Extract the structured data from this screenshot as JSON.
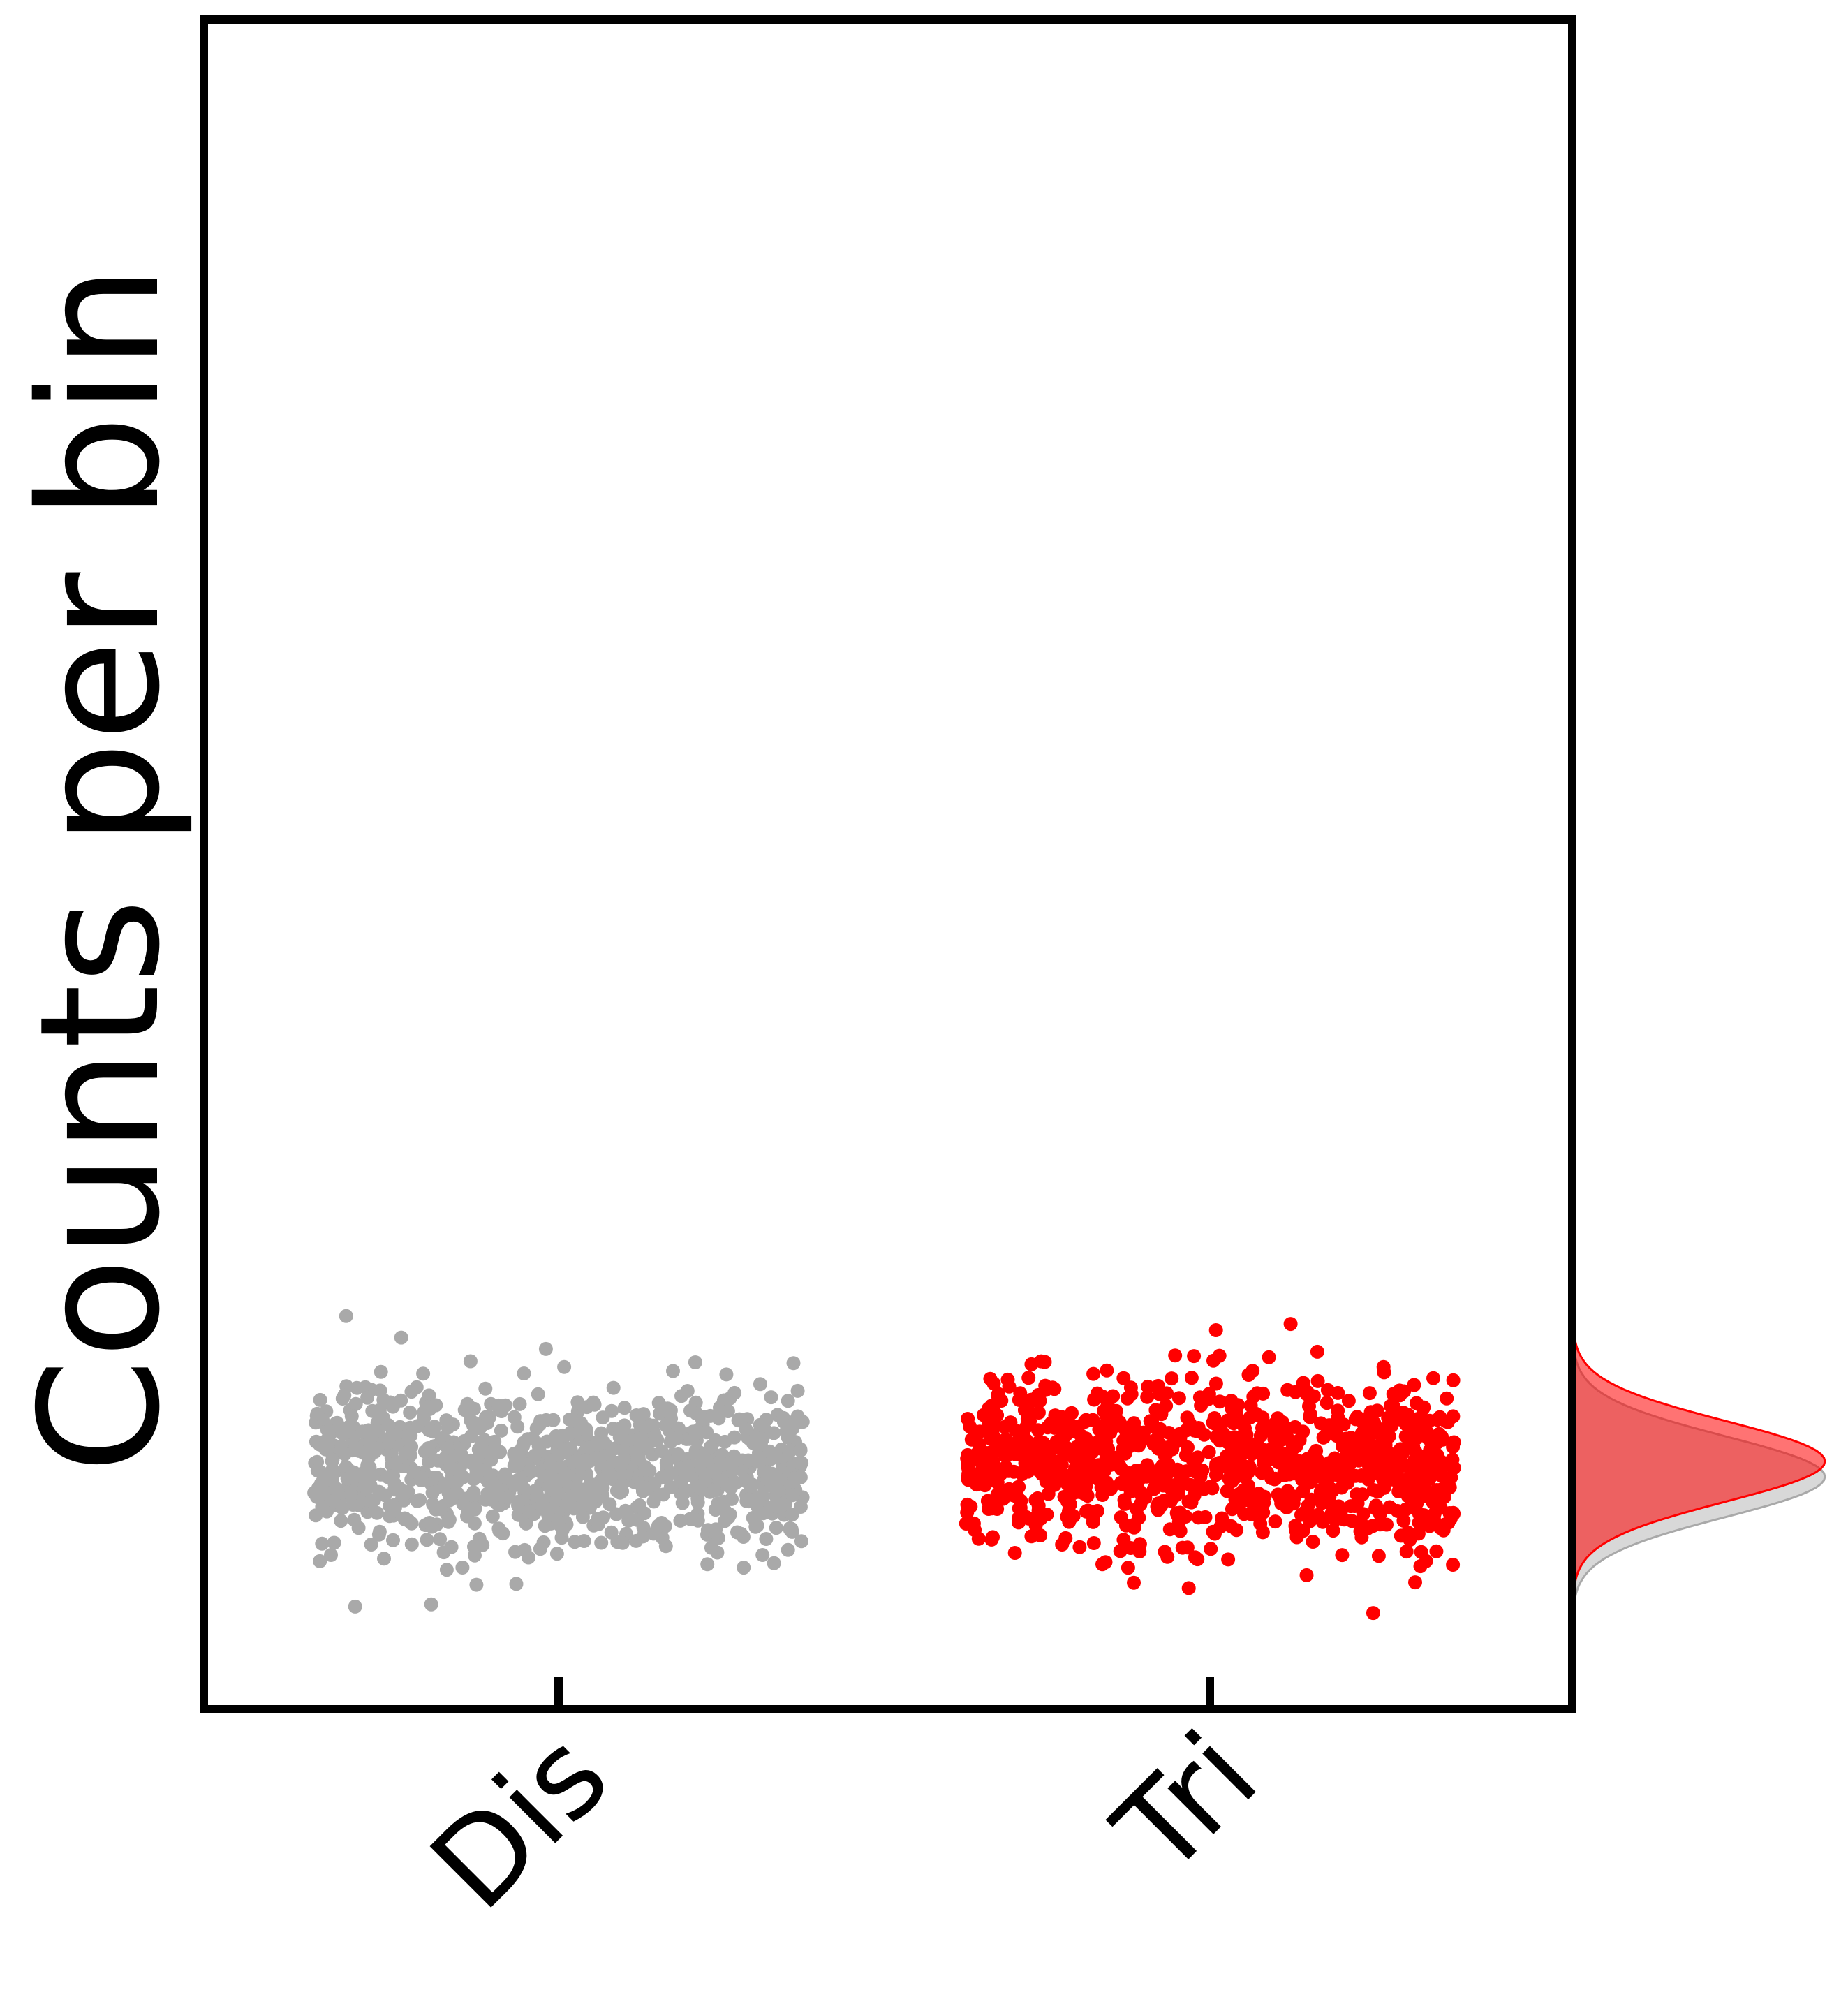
{
  "chart_data": {
    "type": "scatter",
    "title": "",
    "xlabel": "",
    "ylabel": "Counts per bin",
    "categories": [
      "Dis",
      "Tri"
    ],
    "ylim": [
      0,
      1
    ],
    "grid": false,
    "legend": "none",
    "series": [
      {
        "category": "Dis",
        "color": "#a9a9a9",
        "n_points": 1000,
        "center": 0.14,
        "spread": 0.03
      },
      {
        "category": "Tri",
        "color": "#ff0000",
        "n_points": 1000,
        "center": 0.145,
        "spread": 0.03
      }
    ],
    "marginal_density": {
      "placement": "right",
      "colors": [
        "#a9a9a9",
        "#ff0000"
      ]
    }
  }
}
